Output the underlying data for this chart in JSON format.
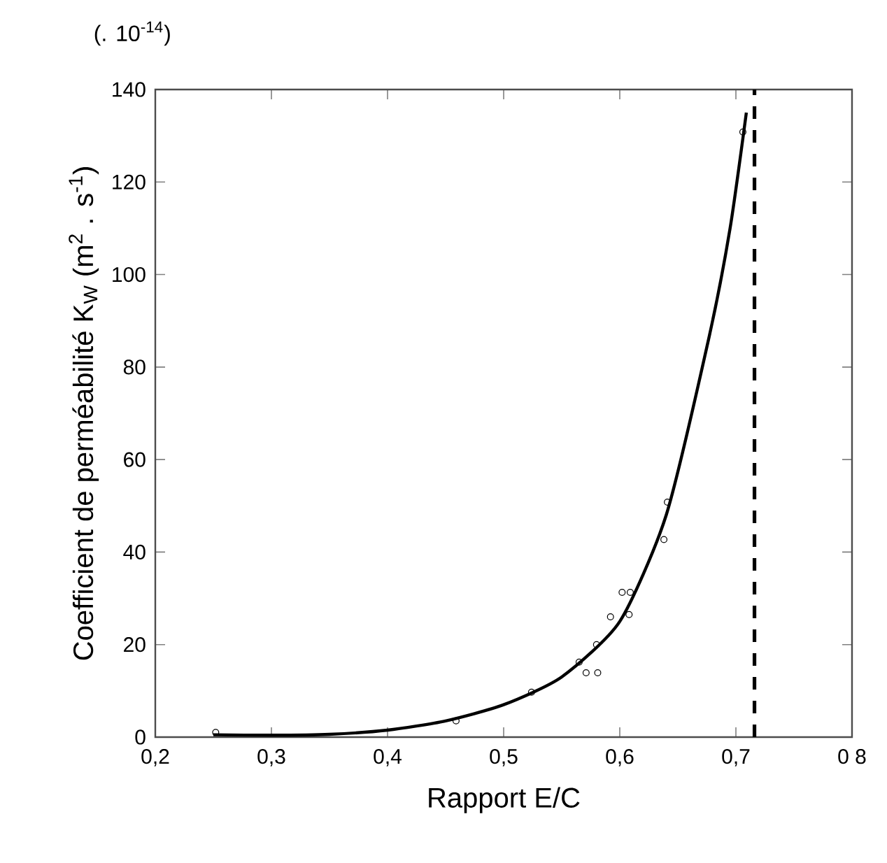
{
  "chart_data": {
    "type": "scatter",
    "xlabel": "Rapport E/C",
    "ylabel": "Coefficient de perméabilité K$_{W}$ (m$^{2}$ . s$^{-1}$)",
    "annotations": [
      "(. 10$^{-14}$)"
    ],
    "xlim": [
      0.2,
      0.8
    ],
    "ylim": [
      0,
      140
    ],
    "xticks": [
      {
        "value": 0.2,
        "label": "0,2"
      },
      {
        "value": 0.3,
        "label": "0,3"
      },
      {
        "value": 0.4,
        "label": "0,4"
      },
      {
        "value": 0.5,
        "label": "0,5"
      },
      {
        "value": 0.6,
        "label": "0,6"
      },
      {
        "value": 0.7,
        "label": "0,7"
      },
      {
        "value": 0.8,
        "label": "0 8"
      }
    ],
    "yticks": [
      0,
      20,
      40,
      60,
      80,
      100,
      120,
      140
    ],
    "grid": false,
    "series": [
      {
        "color": "#000000",
        "marker": "circle",
        "x": [
          0.252,
          0.459,
          0.524,
          0.565,
          0.571,
          0.581,
          0.58,
          0.592,
          0.608,
          0.602,
          0.609,
          0.638,
          0.641,
          0.706
        ],
        "values": [
          1,
          3.5,
          9.7,
          16.2,
          13.9,
          13.9,
          20,
          26,
          26.5,
          31.3,
          31.3,
          42.7,
          50.8,
          130.8
        ]
      },
      {
        "type": "line",
        "color": "#000000",
        "marker": "none",
        "line_style": "solid",
        "x": [
          0.25,
          0.3,
          0.35,
          0.4,
          0.45,
          0.5,
          0.55,
          0.6,
          0.64,
          0.677,
          0.695,
          0.709
        ],
        "values": [
          0.5,
          0.4,
          0.6,
          1.5,
          3.5,
          7,
          13,
          25,
          48,
          86.6,
          110,
          135
        ]
      }
    ],
    "ref_lines": [
      {
        "axis": "x",
        "value": 0.716,
        "color": "#000000",
        "line_style": "dashed"
      }
    ]
  }
}
